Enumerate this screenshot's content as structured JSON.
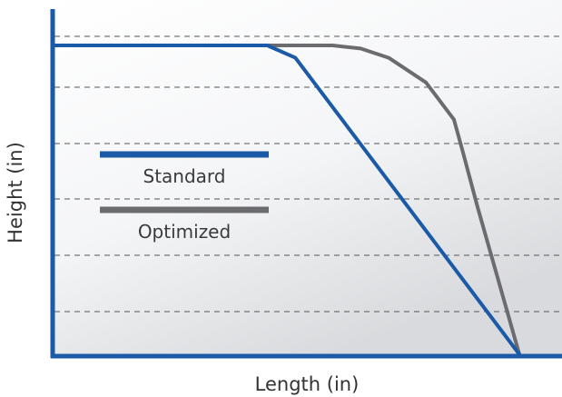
{
  "chart_data": {
    "type": "line",
    "title": "",
    "xlabel": "Length (in)",
    "ylabel": "Height (in)",
    "xlim": [
      0,
      100
    ],
    "ylim": [
      0,
      100
    ],
    "grid": "horizontal dashed",
    "legend": "inside-left",
    "series": [
      {
        "name": "Standard",
        "color": "#1b5aa6",
        "x": [
          0,
          46,
          52,
          100
        ],
        "y": [
          100,
          100,
          96,
          0
        ]
      },
      {
        "name": "Optimized",
        "color": "#6b6b70",
        "x": [
          0,
          60,
          66,
          72,
          80,
          86,
          88,
          91,
          100
        ],
        "y": [
          100,
          100,
          99,
          96,
          88,
          76,
          65,
          48,
          0
        ]
      }
    ]
  }
}
